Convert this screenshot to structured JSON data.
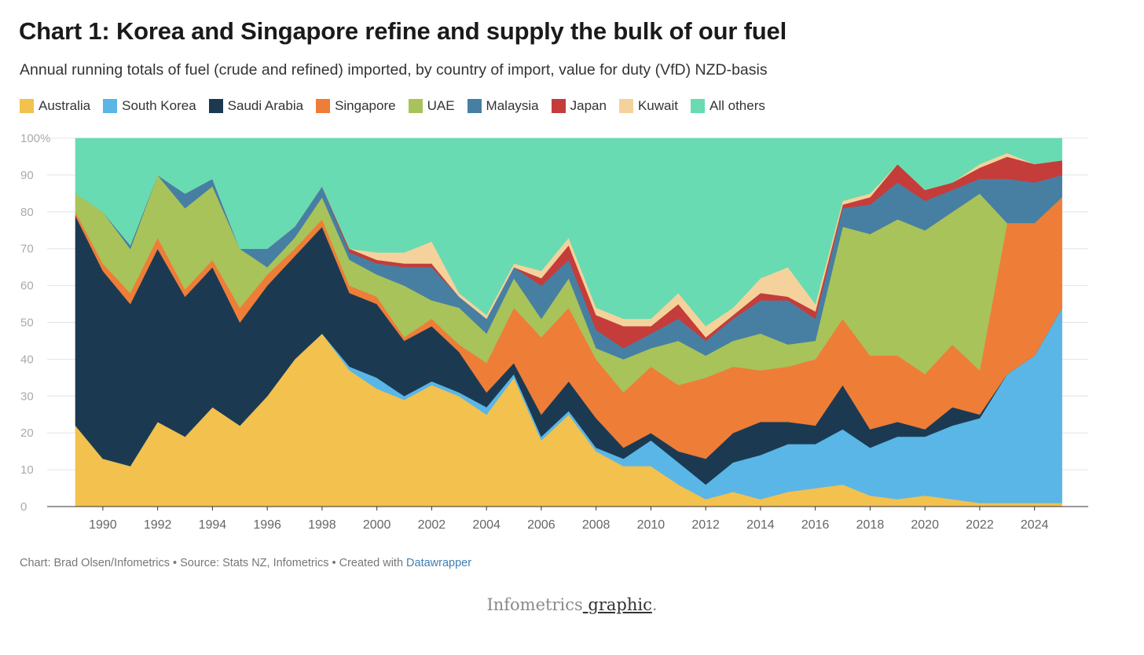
{
  "chart_data": {
    "type": "area",
    "stacked": true,
    "title": "Chart 1: Korea and Singapore refine and supply the bulk of our fuel",
    "subtitle": "Annual running totals of fuel (crude and refined) imported, by country of import, value for duty (VfD) NZD-basis",
    "xlabel": "",
    "ylabel": "",
    "xlim": [
      1989,
      2025.5
    ],
    "ylim": [
      0,
      100
    ],
    "y_ticks": [
      0,
      10,
      20,
      30,
      40,
      50,
      60,
      70,
      80,
      90,
      100
    ],
    "y_tick_labels": [
      "0",
      "10",
      "20",
      "30",
      "40",
      "50",
      "60",
      "70",
      "80",
      "90",
      "100%"
    ],
    "x_ticks": [
      1990,
      1992,
      1994,
      1996,
      1998,
      2000,
      2002,
      2004,
      2006,
      2008,
      2010,
      2012,
      2014,
      2016,
      2018,
      2020,
      2022,
      2024
    ],
    "x_tick_labels": [
      "1990",
      "1992",
      "1994",
      "1996",
      "1998",
      "2000",
      "2002",
      "2004",
      "2006",
      "2008",
      "2010",
      "2012",
      "2014",
      "2016",
      "2018",
      "2020",
      "2022",
      "2024"
    ],
    "legend_position": "top",
    "x": [
      1989,
      1990,
      1991,
      1992,
      1993,
      1994,
      1995,
      1996,
      1997,
      1998,
      1999,
      2000,
      2001,
      2002,
      2003,
      2004,
      2005,
      2006,
      2007,
      2008,
      2009,
      2010,
      2011,
      2012,
      2013,
      2014,
      2015,
      2016,
      2017,
      2018,
      2019,
      2020,
      2021,
      2022,
      2023,
      2024,
      2025
    ],
    "series": [
      {
        "name": "Australia",
        "color": "#f2c14e",
        "values": [
          22,
          13,
          11,
          23,
          19,
          27,
          22,
          30,
          40,
          47,
          37,
          32,
          29,
          33,
          30,
          25,
          35,
          18,
          25,
          15,
          11,
          11,
          6,
          2,
          4,
          2,
          4,
          5,
          6,
          3,
          2,
          3,
          2,
          1,
          1,
          1,
          1
        ]
      },
      {
        "name": "South Korea",
        "color": "#5ab6e6",
        "values": [
          0,
          0,
          0,
          0,
          0,
          0,
          0,
          0,
          0,
          0,
          1,
          3,
          1,
          1,
          1,
          2,
          1,
          1,
          1,
          1,
          2,
          7,
          6,
          4,
          8,
          12,
          13,
          12,
          15,
          13,
          17,
          16,
          20,
          23,
          35,
          40,
          53
        ]
      },
      {
        "name": "Saudi Arabia",
        "color": "#1b3a52",
        "values": [
          57,
          51,
          44,
          47,
          38,
          38,
          28,
          30,
          28,
          29,
          20,
          20,
          15,
          15,
          11,
          4,
          3,
          6,
          8,
          8,
          3,
          2,
          3,
          7,
          8,
          9,
          6,
          5,
          12,
          5,
          4,
          2,
          5,
          1,
          0,
          0,
          0
        ]
      },
      {
        "name": "Singapore",
        "color": "#ee7d38",
        "values": [
          1,
          2,
          3,
          3,
          2,
          2,
          4,
          3,
          2,
          2,
          2,
          2,
          1,
          2,
          2,
          8,
          15,
          21,
          20,
          16,
          15,
          18,
          18,
          22,
          18,
          14,
          15,
          18,
          18,
          20,
          18,
          15,
          17,
          12,
          41,
          36,
          30
        ]
      },
      {
        "name": "UAE",
        "color": "#a8c35a",
        "values": [
          5,
          14,
          12,
          17,
          22,
          20,
          16,
          2,
          3,
          6,
          7,
          6,
          14,
          5,
          10,
          8,
          8,
          5,
          8,
          3,
          9,
          5,
          12,
          6,
          7,
          10,
          6,
          5,
          25,
          33,
          37,
          39,
          36,
          48,
          0,
          0,
          0
        ]
      },
      {
        "name": "Malaysia",
        "color": "#477fa3",
        "values": [
          0,
          0,
          1,
          0,
          4,
          2,
          0,
          5,
          3,
          3,
          2,
          3,
          5,
          9,
          3,
          4,
          3,
          9,
          5,
          5,
          3,
          4,
          6,
          4,
          6,
          9,
          12,
          6,
          5,
          8,
          10,
          8,
          6,
          4,
          12,
          11,
          6
        ]
      },
      {
        "name": "Japan",
        "color": "#c43d3a",
        "values": [
          0,
          0,
          0,
          0,
          0,
          0,
          0,
          0,
          0,
          0,
          1,
          1,
          1,
          1,
          0,
          0,
          0,
          2,
          4,
          4,
          6,
          2,
          4,
          1,
          1,
          2,
          1,
          2,
          1,
          2,
          5,
          3,
          2,
          3,
          6,
          5,
          4
        ]
      },
      {
        "name": "Kuwait",
        "color": "#f5d29c",
        "values": [
          0,
          0,
          0,
          0,
          0,
          0,
          0,
          0,
          0,
          0,
          0,
          2,
          3,
          6,
          1,
          1,
          1,
          2,
          2,
          2,
          2,
          2,
          3,
          3,
          2,
          4,
          8,
          2,
          1,
          1,
          0,
          0,
          0,
          1,
          1,
          0,
          0
        ]
      },
      {
        "name": "All others",
        "color": "#68dbb2",
        "values": [
          15,
          20,
          29,
          10,
          15,
          11,
          30,
          30,
          24,
          13,
          30,
          31,
          31,
          28,
          42,
          48,
          34,
          36,
          27,
          46,
          49,
          49,
          42,
          51,
          46,
          38,
          35,
          45,
          17,
          15,
          7,
          14,
          12,
          7,
          4,
          7,
          6
        ]
      }
    ],
    "gridline_color": "#e4e4e4",
    "tick_label_color": "#666666"
  },
  "footer": {
    "prefix": "Chart: Brad Olsen/Infometrics • Source: Stats NZ, Infometrics • Created with ",
    "link": "Datawrapper"
  },
  "caption": {
    "text": "Infometrics",
    "link": " graphic",
    "suffix": "."
  }
}
